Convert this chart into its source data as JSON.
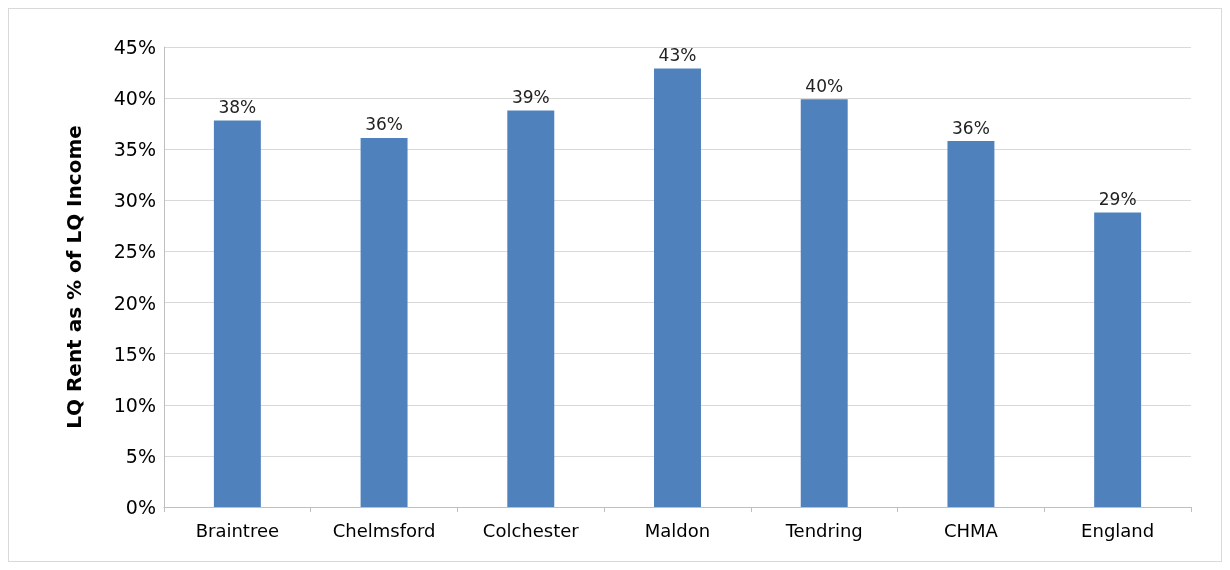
{
  "chart_data": {
    "type": "bar",
    "ylabel": "LQ Rent as % of LQ Income",
    "categories": [
      "Braintree",
      "Chelmsford",
      "Colchester",
      "Maldon",
      "Tendring",
      "CHMA",
      "England"
    ],
    "values": [
      37.8,
      36.1,
      38.8,
      42.9,
      39.9,
      35.8,
      28.8
    ],
    "value_labels": [
      "38%",
      "36%",
      "39%",
      "43%",
      "40%",
      "36%",
      "29%"
    ],
    "color": "#4f81bd",
    "ylim": [
      0,
      45
    ],
    "yticks": [
      {
        "value": 0,
        "label": "0%"
      },
      {
        "value": 5,
        "label": "5%"
      },
      {
        "value": 10,
        "label": "10%"
      },
      {
        "value": 15,
        "label": "15%"
      },
      {
        "value": 20,
        "label": "20%"
      },
      {
        "value": 25,
        "label": "25%"
      },
      {
        "value": 30,
        "label": "30%"
      },
      {
        "value": 35,
        "label": "35%"
      },
      {
        "value": 40,
        "label": "40%"
      },
      {
        "value": 45,
        "label": "45%"
      }
    ],
    "grid": true
  }
}
